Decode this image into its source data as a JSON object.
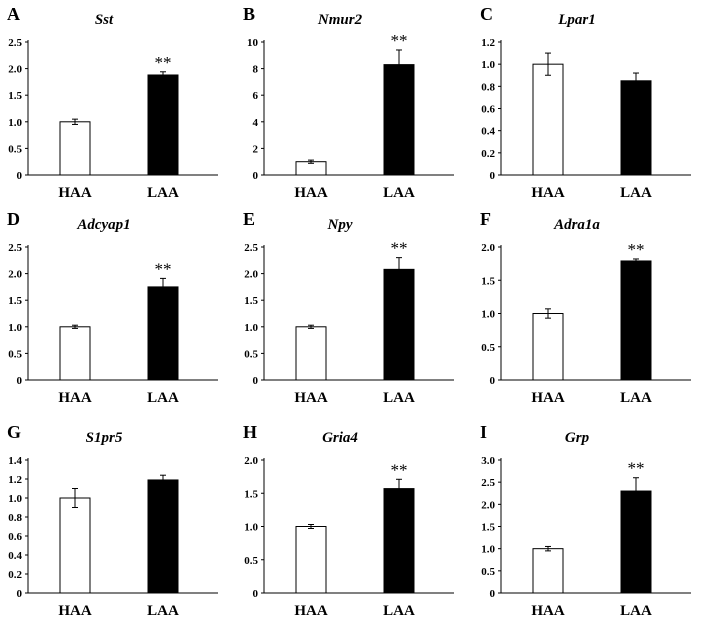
{
  "chart_data": [
    {
      "panel": "A",
      "title": "Sst",
      "type": "bar",
      "categories": [
        "HAA",
        "LAA"
      ],
      "values": [
        1.0,
        1.88
      ],
      "errors": [
        0.05,
        0.06
      ],
      "significance": [
        "",
        "**"
      ],
      "ylim": [
        0,
        2.5
      ],
      "yticks": [
        0,
        0.5,
        1.0,
        1.5,
        2.0,
        2.5
      ],
      "ytick_labels": [
        "0",
        "0.5",
        "1.0",
        "1.5",
        "2.0",
        "2.5"
      ],
      "bar_colors": [
        "#ffffff",
        "#000000"
      ]
    },
    {
      "panel": "B",
      "title": "Nmur2",
      "type": "bar",
      "categories": [
        "HAA",
        "LAA"
      ],
      "values": [
        1.0,
        8.3
      ],
      "errors": [
        0.12,
        1.1
      ],
      "significance": [
        "",
        "**"
      ],
      "ylim": [
        0,
        10
      ],
      "yticks": [
        0,
        2,
        4,
        6,
        8,
        10
      ],
      "ytick_labels": [
        "0",
        "2",
        "4",
        "6",
        "8",
        "10"
      ],
      "bar_colors": [
        "#ffffff",
        "#000000"
      ]
    },
    {
      "panel": "C",
      "title": "Lpar1",
      "type": "bar",
      "categories": [
        "HAA",
        "LAA"
      ],
      "values": [
        1.0,
        0.85
      ],
      "errors": [
        0.1,
        0.07
      ],
      "significance": [
        "",
        ""
      ],
      "ylim": [
        0,
        1.2
      ],
      "yticks": [
        0,
        0.2,
        0.4,
        0.6,
        0.8,
        1.0,
        1.2
      ],
      "ytick_labels": [
        "0",
        "0.2",
        "0.4",
        "0.6",
        "0.8",
        "1.0",
        "1.2"
      ],
      "bar_colors": [
        "#ffffff",
        "#000000"
      ]
    },
    {
      "panel": "D",
      "title": "Adcyap1",
      "type": "bar",
      "categories": [
        "HAA",
        "LAA"
      ],
      "values": [
        1.0,
        1.75
      ],
      "errors": [
        0.03,
        0.16
      ],
      "significance": [
        "",
        "**"
      ],
      "ylim": [
        0,
        2.5
      ],
      "yticks": [
        0,
        0.5,
        1.0,
        1.5,
        2.0,
        2.5
      ],
      "ytick_labels": [
        "0",
        "0.5",
        "1.0",
        "1.5",
        "2.0",
        "2.5"
      ],
      "bar_colors": [
        "#ffffff",
        "#000000"
      ]
    },
    {
      "panel": "E",
      "title": "Npy",
      "type": "bar",
      "categories": [
        "HAA",
        "LAA"
      ],
      "values": [
        1.0,
        2.08
      ],
      "errors": [
        0.03,
        0.22
      ],
      "significance": [
        "",
        "**"
      ],
      "ylim": [
        0,
        2.5
      ],
      "yticks": [
        0,
        0.5,
        1.0,
        1.5,
        2.0,
        2.5
      ],
      "ytick_labels": [
        "0",
        "0.5",
        "1.0",
        "1.5",
        "2.0",
        "2.5"
      ],
      "bar_colors": [
        "#ffffff",
        "#000000"
      ]
    },
    {
      "panel": "F",
      "title": "Adra1a",
      "type": "bar",
      "categories": [
        "HAA",
        "LAA"
      ],
      "values": [
        1.0,
        1.79
      ],
      "errors": [
        0.07,
        0.03
      ],
      "significance": [
        "",
        "**"
      ],
      "ylim": [
        0,
        2.0
      ],
      "yticks": [
        0,
        0.5,
        1.0,
        1.5,
        2.0
      ],
      "ytick_labels": [
        "0",
        "0.5",
        "1.0",
        "1.5",
        "2.0"
      ],
      "bar_colors": [
        "#ffffff",
        "#000000"
      ]
    },
    {
      "panel": "G",
      "title": "S1pr5",
      "type": "bar",
      "categories": [
        "HAA",
        "LAA"
      ],
      "values": [
        1.0,
        1.19
      ],
      "errors": [
        0.1,
        0.05
      ],
      "significance": [
        "",
        ""
      ],
      "ylim": [
        0,
        1.4
      ],
      "yticks": [
        0,
        0.2,
        0.4,
        0.6,
        0.8,
        1.0,
        1.2,
        1.4
      ],
      "ytick_labels": [
        "0",
        "0.2",
        "0.4",
        "0.6",
        "0.8",
        "1.0",
        "1.2",
        "1.4"
      ],
      "bar_colors": [
        "#ffffff",
        "#000000"
      ]
    },
    {
      "panel": "H",
      "title": "Gria4",
      "type": "bar",
      "categories": [
        "HAA",
        "LAA"
      ],
      "values": [
        1.0,
        1.57
      ],
      "errors": [
        0.03,
        0.14
      ],
      "significance": [
        "",
        "**"
      ],
      "ylim": [
        0,
        2.0
      ],
      "yticks": [
        0,
        0.5,
        1.0,
        1.5,
        2.0
      ],
      "ytick_labels": [
        "0",
        "0.5",
        "1.0",
        "1.5",
        "2.0"
      ],
      "bar_colors": [
        "#ffffff",
        "#000000"
      ]
    },
    {
      "panel": "I",
      "title": "Grp",
      "type": "bar",
      "categories": [
        "HAA",
        "LAA"
      ],
      "values": [
        1.0,
        2.3
      ],
      "errors": [
        0.05,
        0.3
      ],
      "significance": [
        "",
        "**"
      ],
      "ylim": [
        0,
        3.0
      ],
      "yticks": [
        0,
        0.5,
        1.0,
        1.5,
        2.0,
        2.5,
        3.0
      ],
      "ytick_labels": [
        "0",
        "0.5",
        "1.0",
        "1.5",
        "2.0",
        "2.5",
        "3.0"
      ],
      "bar_colors": [
        "#ffffff",
        "#000000"
      ]
    }
  ]
}
